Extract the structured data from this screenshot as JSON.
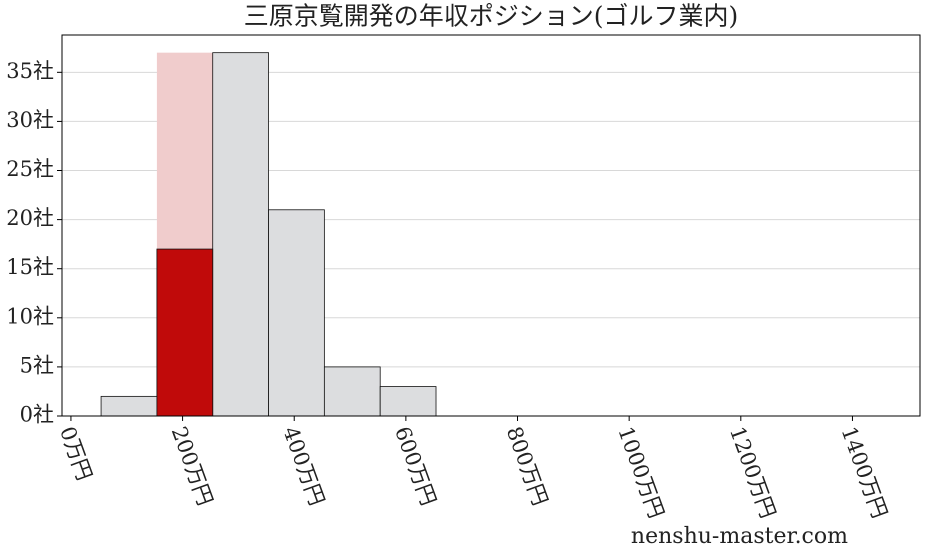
{
  "chart_data": {
    "type": "histogram",
    "title": "三原京覧開発の年収ポジション(ゴルフ業内)",
    "watermark": "nenshu-master.com",
    "bins": [
      54,
      154,
      254,
      354,
      454,
      554,
      654
    ],
    "series": [
      {
        "counts": [
          2,
          37,
          37,
          21,
          5,
          3
        ],
        "colors": [
          "#dcdddf",
          "#f0cccc",
          "#dcdddf",
          "#dcdddf",
          "#dcdddf",
          "#dcdddf"
        ]
      },
      {
        "counts": [
          null,
          17,
          null,
          null,
          null,
          null
        ],
        "color": "#c00a0a"
      }
    ],
    "xlim": [
      -16,
      1521
    ],
    "ylim": [
      0,
      38.8
    ],
    "xticks": [
      {
        "value": 0,
        "label": "0万円"
      },
      {
        "value": 200,
        "label": "200万円"
      },
      {
        "value": 400,
        "label": "400万円"
      },
      {
        "value": 600,
        "label": "600万円"
      },
      {
        "value": 800,
        "label": "800万円"
      },
      {
        "value": 1000,
        "label": "1000万円"
      },
      {
        "value": 1200,
        "label": "1200万円"
      },
      {
        "value": 1400,
        "label": "1400万円"
      }
    ],
    "yticks": [
      {
        "value": 0,
        "label": "0社"
      },
      {
        "value": 5,
        "label": "5社"
      },
      {
        "value": 10,
        "label": "10社"
      },
      {
        "value": 15,
        "label": "15社"
      },
      {
        "value": 20,
        "label": "20社"
      },
      {
        "value": 25,
        "label": "25社"
      },
      {
        "value": 30,
        "label": "30社"
      },
      {
        "value": 35,
        "label": "35社"
      }
    ],
    "grid": true
  }
}
